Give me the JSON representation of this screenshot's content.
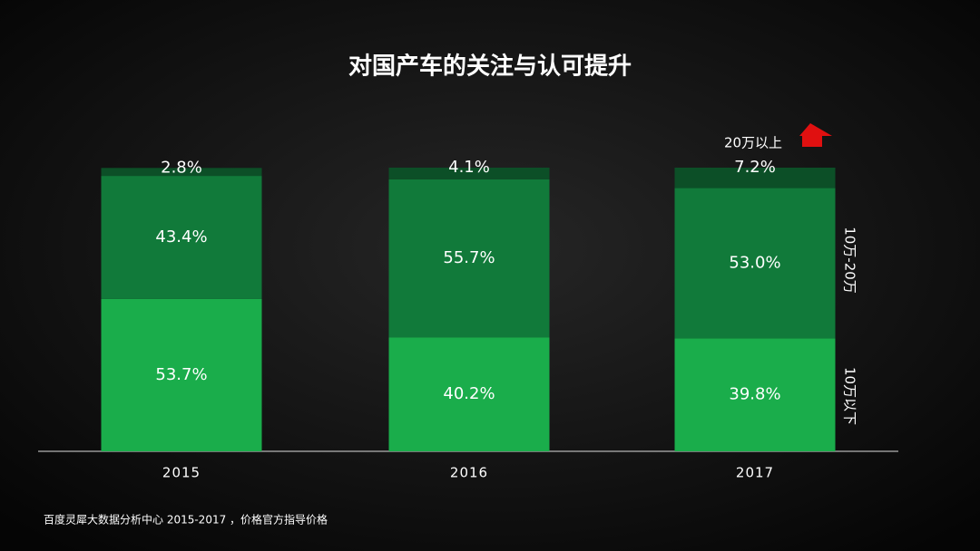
{
  "chart_data": {
    "type": "stacked-bar",
    "title": "对国产车的关注与认可提升",
    "categories": [
      "2015",
      "2016",
      "2017"
    ],
    "series": [
      {
        "name": "10万以下",
        "color": "#1aad4b",
        "values": [
          53.7,
          40.2,
          39.8
        ],
        "value_labels": [
          "53.7%",
          "40.2%",
          "39.8%"
        ]
      },
      {
        "name": "10万-20万",
        "color": "#117a3a",
        "values": [
          43.4,
          55.7,
          53.0
        ],
        "value_labels": [
          "43.4%",
          "55.7%",
          "53.0%"
        ]
      },
      {
        "name": "20万以上",
        "color": "#0c4f27",
        "values": [
          2.8,
          4.1,
          7.2
        ],
        "value_labels": [
          "2.8%",
          "4.1%",
          "7.2%"
        ]
      }
    ],
    "source": "百度灵犀大数据分析中心 2015-2017 ，价格官方指导价格"
  }
}
